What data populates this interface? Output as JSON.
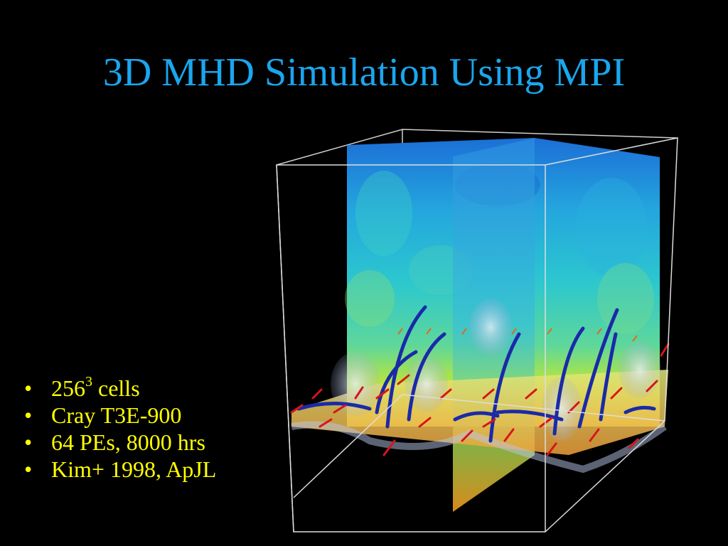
{
  "slide": {
    "title": "3D MHD Simulation Using MPI",
    "bullets": [
      {
        "base": "256",
        "sup": "3",
        "rest": " cells"
      },
      {
        "text": "Cray T3E-900"
      },
      {
        "text": "64 PEs, 8000 hrs"
      },
      {
        "text": "Kim+ 1998, ApJL"
      }
    ]
  },
  "colors": {
    "background": "#000000",
    "title": "#1aa6ee",
    "bullets": "#ffff00",
    "box_edges": "#dddddd",
    "field_lines": "#1a2aa8",
    "vectors": "#d8141a"
  },
  "figure": {
    "kind": "3d-simulation-render",
    "elements": [
      "bounding-box",
      "vertical-color-slices",
      "horizontal-slice",
      "magnetic-field-lines",
      "velocity-vectors",
      "translucent-surface"
    ]
  }
}
